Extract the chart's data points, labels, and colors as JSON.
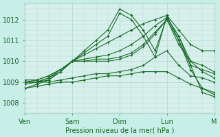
{
  "background_color": "#c8eee8",
  "plot_bg_color": "#d8f0ec",
  "grid_color": "#b0d8cc",
  "line_color": "#1a6b2a",
  "xlabel": "Pression niveau de la mer( hPa )",
  "ylim": [
    1007.5,
    1012.8
  ],
  "xlim": [
    0,
    96
  ],
  "yticks": [
    1008,
    1009,
    1010,
    1011,
    1012
  ],
  "xtick_positions": [
    0,
    24,
    48,
    72,
    96
  ],
  "xtick_labels": [
    "Ven",
    "Sam",
    "Dim",
    "Lun",
    "M"
  ],
  "series": [
    {
      "x": [
        0,
        6,
        12,
        18,
        24,
        30,
        36,
        42,
        48,
        54,
        60,
        66,
        72,
        78,
        84,
        90,
        96
      ],
      "y": [
        1008.7,
        1008.9,
        1009.1,
        1009.5,
        1010.0,
        1010.5,
        1011.0,
        1011.5,
        1012.5,
        1012.2,
        1011.5,
        1010.5,
        1012.1,
        1011.2,
        1009.8,
        1008.5,
        1008.3
      ]
    },
    {
      "x": [
        0,
        6,
        12,
        18,
        24,
        30,
        36,
        42,
        48,
        54,
        60,
        66,
        72,
        78,
        84,
        90,
        96
      ],
      "y": [
        1008.9,
        1009.0,
        1009.2,
        1009.6,
        1010.0,
        1010.4,
        1010.8,
        1011.2,
        1012.3,
        1012.0,
        1011.2,
        1010.2,
        1012.2,
        1011.0,
        1009.6,
        1008.7,
        1008.4
      ]
    },
    {
      "x": [
        0,
        6,
        12,
        18,
        24,
        30,
        36,
        42,
        48,
        54,
        60,
        66,
        72,
        78,
        84,
        90,
        96
      ],
      "y": [
        1009.0,
        1009.1,
        1009.3,
        1009.6,
        1010.0,
        1010.3,
        1010.6,
        1010.9,
        1011.2,
        1011.5,
        1011.8,
        1012.0,
        1012.2,
        1011.5,
        1010.8,
        1010.5,
        1010.5
      ]
    },
    {
      "x": [
        0,
        6,
        12,
        18,
        24,
        30,
        36,
        42,
        48,
        54,
        60,
        66,
        72,
        78,
        84,
        90,
        96
      ],
      "y": [
        1009.0,
        1009.0,
        1009.1,
        1009.5,
        1010.0,
        1010.1,
        1010.2,
        1010.3,
        1010.5,
        1010.8,
        1011.2,
        1011.7,
        1012.1,
        1011.2,
        1010.0,
        1009.5,
        1009.2
      ]
    },
    {
      "x": [
        0,
        6,
        12,
        18,
        24,
        30,
        36,
        42,
        48,
        54,
        60,
        66,
        72,
        78,
        84,
        90,
        96
      ],
      "y": [
        1009.1,
        1009.1,
        1009.3,
        1009.6,
        1010.0,
        1010.0,
        1010.1,
        1010.1,
        1010.2,
        1010.4,
        1010.8,
        1011.4,
        1012.0,
        1011.0,
        1009.8,
        1009.6,
        1009.4
      ]
    },
    {
      "x": [
        0,
        6,
        12,
        18,
        24,
        30,
        36,
        42,
        48,
        54,
        60,
        66,
        72,
        78,
        84,
        90,
        96
      ],
      "y": [
        1009.0,
        1009.0,
        1009.2,
        1009.5,
        1010.0,
        1010.0,
        1010.0,
        1010.0,
        1010.1,
        1010.3,
        1010.7,
        1011.3,
        1012.0,
        1010.8,
        1010.0,
        1009.8,
        1009.5
      ]
    },
    {
      "x": [
        0,
        6,
        12,
        18,
        24,
        30,
        36,
        42,
        48,
        54,
        60,
        66,
        72,
        78,
        84,
        90,
        96
      ],
      "y": [
        1009.0,
        1009.0,
        1009.0,
        1009.1,
        1009.2,
        1009.3,
        1009.4,
        1009.4,
        1009.5,
        1009.6,
        1009.8,
        1010.2,
        1010.5,
        1009.8,
        1009.3,
        1009.2,
        1009.0
      ]
    },
    {
      "x": [
        0,
        6,
        12,
        18,
        24,
        30,
        36,
        42,
        48,
        54,
        60,
        66,
        72,
        78,
        84,
        90,
        96
      ],
      "y": [
        1008.7,
        1008.8,
        1008.9,
        1009.0,
        1009.0,
        1009.1,
        1009.2,
        1009.3,
        1009.3,
        1009.4,
        1009.5,
        1009.5,
        1009.5,
        1009.2,
        1008.9,
        1008.7,
        1008.5
      ]
    }
  ]
}
